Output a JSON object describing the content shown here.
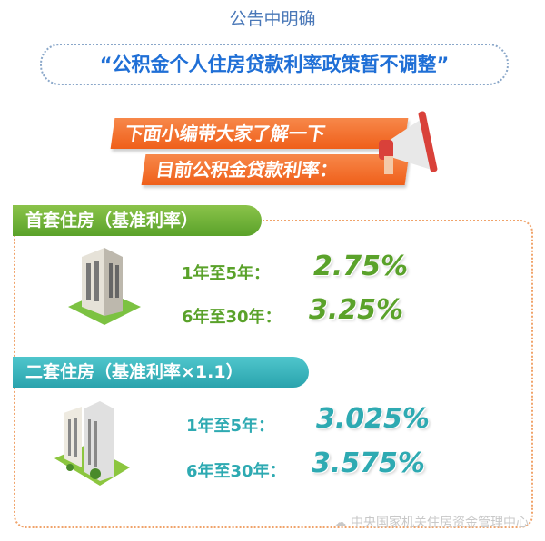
{
  "title": "公告中明确",
  "headline": "“公积金个人住房贷款利率政策暂不调整”",
  "banner1": "下面小编带大家了解一下",
  "banner2": "目前公积金贷款利率：",
  "first_home": {
    "label": "首套住房（基准利率）",
    "rows": [
      {
        "term": "1年至5年：",
        "rate": "2.75%"
      },
      {
        "term": "6年至30年：",
        "rate": "3.25%"
      }
    ],
    "color": "#5aa22a"
  },
  "second_home": {
    "label": "二套住房（基准利率×1.1）",
    "rows": [
      {
        "term": "1年至5年：",
        "rate": "3.025%"
      },
      {
        "term": "6年至30年：",
        "rate": "3.575%"
      }
    ],
    "color": "#2eaab2"
  },
  "watermark": "中央国家机关住房资金管理中心"
}
